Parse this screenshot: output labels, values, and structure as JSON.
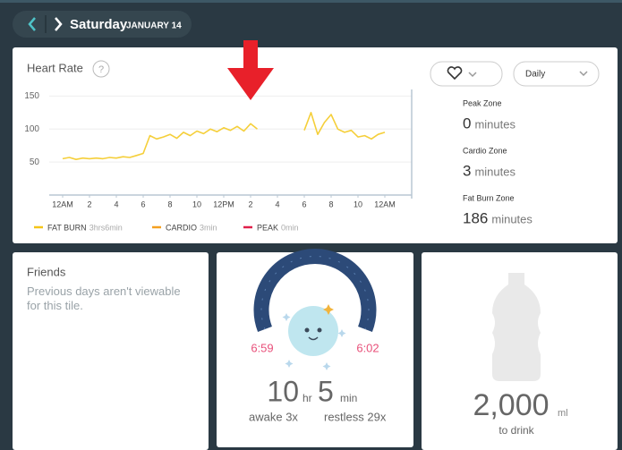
{
  "header": {
    "day": "Saturday",
    "date": "JANUARY 14"
  },
  "chart_data": {
    "type": "line",
    "title": "Heart Rate",
    "help_icon": "?",
    "x": [
      0,
      0.5,
      1,
      1.5,
      2,
      2.5,
      3,
      3.5,
      4,
      4.5,
      5,
      5.5,
      6,
      6.5,
      7,
      7.5,
      8,
      8.5,
      9,
      9.5,
      10,
      10.5,
      11,
      11.5,
      12,
      12.5,
      13,
      13.5,
      14,
      14.5,
      15,
      15.5,
      16,
      16.5,
      17,
      17.5,
      18,
      18.5,
      19,
      19.5,
      20,
      20.5,
      21,
      21.5,
      22,
      22.5,
      23,
      23.5,
      24
    ],
    "series": [
      {
        "color": "#f5cf3a",
        "values": [
          55,
          57,
          54,
          56,
          55,
          56,
          55,
          57,
          56,
          58,
          57,
          60,
          63,
          90,
          85,
          88,
          92,
          86,
          95,
          90,
          97,
          93,
          100,
          96,
          102,
          98,
          104,
          97,
          108,
          100,
          null,
          null,
          null,
          null,
          null,
          null,
          98,
          125,
          92,
          110,
          122,
          100,
          95,
          98,
          88,
          90,
          85,
          92,
          95
        ]
      }
    ],
    "xlim": [
      -1,
      26
    ],
    "xticks": [
      {
        "value": 0,
        "label": "12AM"
      },
      2,
      4,
      6,
      8,
      10,
      {
        "value": 12,
        "label": "12PM"
      },
      {
        "value": 14,
        "label": "2"
      },
      {
        "value": 16,
        "label": "4"
      },
      {
        "value": 18,
        "label": "6"
      },
      {
        "value": 20,
        "label": "8"
      },
      {
        "value": 22,
        "label": "10"
      },
      {
        "value": 24,
        "label": "12AM"
      }
    ],
    "ylim": [
      0,
      160
    ],
    "yticks": [
      50,
      100,
      150
    ],
    "grid": true,
    "legend_items": [
      {
        "name": "FAT BURN",
        "duration": "3hrs6min",
        "color": "#f5c518"
      },
      {
        "name": "CARDIO",
        "duration": "3min",
        "color": "#f5a020"
      },
      {
        "name": "PEAK",
        "duration": "0min",
        "color": "#e0204a"
      }
    ],
    "period_filter": "Daily",
    "zones": [
      {
        "label": "Peak Zone",
        "value": 0,
        "unit": "minutes"
      },
      {
        "label": "Cardio Zone",
        "value": 3,
        "unit": "minutes"
      },
      {
        "label": "Fat Burn Zone",
        "value": 186,
        "unit": "minutes"
      }
    ]
  },
  "friends": {
    "title": "Friends",
    "message": "Previous days aren't viewable for this tile."
  },
  "sleep": {
    "start": "6:59",
    "end": "6:02",
    "hours": 10,
    "hours_unit": "hr",
    "minutes": 5,
    "minutes_unit": "min",
    "awake": "awake 3x",
    "restless": "restless 29x"
  },
  "water": {
    "amount": "2,000",
    "unit": "ml",
    "caption": "to drink"
  }
}
